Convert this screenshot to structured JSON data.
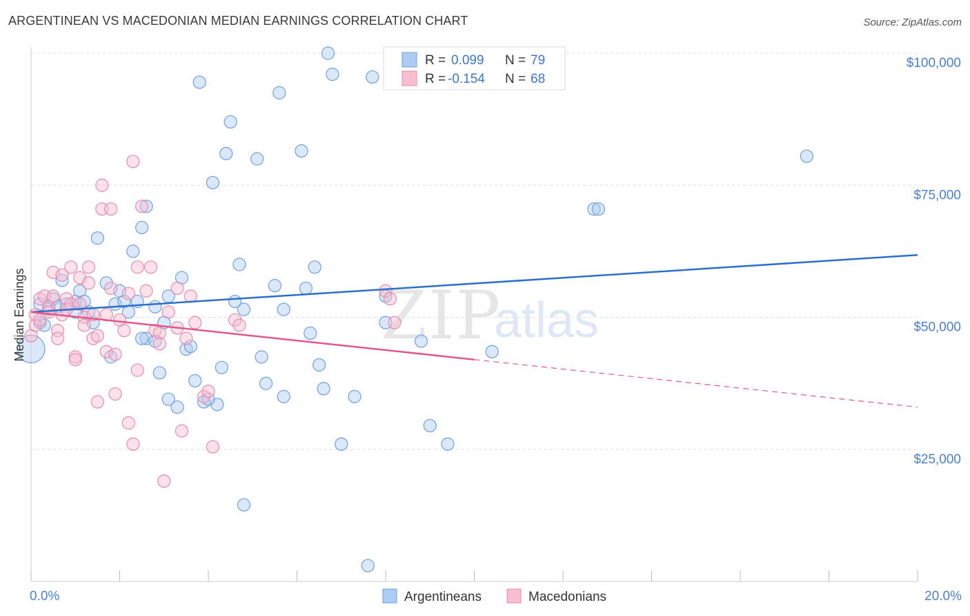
{
  "title": "ARGENTINEAN VS MACEDONIAN MEDIAN EARNINGS CORRELATION CHART",
  "source": "Source: ZipAtlas.com",
  "watermark": {
    "zip": "ZIP",
    "atlas": "atlas"
  },
  "colors": {
    "blue_fill": "#aecbf2",
    "blue_stroke": "#6f9fe0",
    "blue_line": "#2c6fca",
    "pink_fill": "#f7bdd0",
    "pink_stroke": "#e88aab",
    "pink_line": "#e0588a",
    "grid": "#dddddd",
    "tick_text": "#4a7fd4"
  },
  "legend_top": {
    "rows": [
      {
        "r_label": "R =",
        "r_value": "0.099",
        "n_label": "N =",
        "n_value": "79",
        "color": "blue"
      },
      {
        "r_label": "R =",
        "r_value": "-0.154",
        "n_label": "N =",
        "n_value": "68",
        "color": "pink"
      }
    ]
  },
  "legend_bottom": {
    "items": [
      {
        "label": "Argentineans",
        "color": "blue"
      },
      {
        "label": "Macedonians",
        "color": "pink"
      }
    ]
  },
  "chart_data": {
    "type": "scatter",
    "title": "ARGENTINEAN VS MACEDONIAN MEDIAN EARNINGS CORRELATION CHART",
    "xlabel": "",
    "ylabel": "Median Earnings",
    "xlim": [
      0,
      20
    ],
    "ylim": [
      0,
      105000
    ],
    "x_tick_labels": [
      "0.0%",
      "20.0%"
    ],
    "y_ticks": [
      25000,
      50000,
      75000,
      100000
    ],
    "y_tick_labels": [
      "$25,000",
      "$50,000",
      "$75,000",
      "$100,000"
    ],
    "grid": true,
    "legend_position": "top-center",
    "series": [
      {
        "name": "Argentineans",
        "color": "blue",
        "r": 0.099,
        "n": 79,
        "trend": {
          "x0": 0,
          "y0": 51000,
          "x1": 20,
          "y1": 61800,
          "dashed_from": null
        },
        "points": [
          [
            0.0,
            44000
          ],
          [
            0.2,
            49000
          ],
          [
            0.2,
            52500
          ],
          [
            0.4,
            51500
          ],
          [
            0.5,
            53500
          ],
          [
            0.6,
            52000
          ],
          [
            0.7,
            57000
          ],
          [
            1.0,
            51000
          ],
          [
            1.0,
            53000
          ],
          [
            1.1,
            55000
          ],
          [
            1.2,
            53000
          ],
          [
            1.4,
            49000
          ],
          [
            1.5,
            65000
          ],
          [
            1.7,
            56500
          ],
          [
            1.8,
            42500
          ],
          [
            1.9,
            52500
          ],
          [
            2.0,
            55000
          ],
          [
            2.1,
            53000
          ],
          [
            2.2,
            51000
          ],
          [
            2.3,
            62500
          ],
          [
            2.4,
            53000
          ],
          [
            2.5,
            67000
          ],
          [
            2.6,
            46000
          ],
          [
            2.6,
            71000
          ],
          [
            2.8,
            45500
          ],
          [
            2.8,
            52000
          ],
          [
            2.9,
            39500
          ],
          [
            3.0,
            49000
          ],
          [
            3.1,
            54000
          ],
          [
            3.1,
            34500
          ],
          [
            3.3,
            33000
          ],
          [
            3.4,
            57500
          ],
          [
            3.5,
            44000
          ],
          [
            3.6,
            44500
          ],
          [
            3.7,
            38000
          ],
          [
            3.8,
            94500
          ],
          [
            3.9,
            34000
          ],
          [
            4.1,
            75500
          ],
          [
            4.2,
            33500
          ],
          [
            4.3,
            40500
          ],
          [
            4.4,
            81000
          ],
          [
            4.5,
            87000
          ],
          [
            4.6,
            53000
          ],
          [
            4.7,
            60000
          ],
          [
            4.8,
            51500
          ],
          [
            4.8,
            14500
          ],
          [
            5.1,
            80000
          ],
          [
            5.2,
            42500
          ],
          [
            5.3,
            37500
          ],
          [
            5.5,
            56000
          ],
          [
            5.6,
            92500
          ],
          [
            5.7,
            35000
          ],
          [
            5.7,
            51500
          ],
          [
            6.1,
            81500
          ],
          [
            6.2,
            55500
          ],
          [
            6.3,
            47000
          ],
          [
            6.4,
            59500
          ],
          [
            6.5,
            41000
          ],
          [
            6.6,
            36500
          ],
          [
            6.7,
            100000
          ],
          [
            6.8,
            96000
          ],
          [
            7.0,
            26000
          ],
          [
            7.3,
            35000
          ],
          [
            7.6,
            3000
          ],
          [
            7.7,
            95500
          ],
          [
            8.0,
            54000
          ],
          [
            8.0,
            49000
          ],
          [
            8.8,
            45500
          ],
          [
            9.0,
            29500
          ],
          [
            9.4,
            26000
          ],
          [
            10.4,
            43500
          ],
          [
            12.7,
            70500
          ],
          [
            12.8,
            70500
          ],
          [
            17.5,
            80500
          ],
          [
            0.3,
            48500
          ],
          [
            0.8,
            52500
          ],
          [
            1.3,
            51000
          ],
          [
            2.5,
            46000
          ],
          [
            4.0,
            34500
          ]
        ]
      },
      {
        "name": "Macedonians",
        "color": "pink",
        "r": -0.154,
        "n": 68,
        "trend": {
          "x0": 0,
          "y0": 51000,
          "x1": 10,
          "y1": 42000,
          "dashed_to_x": 20,
          "dashed_to_y": 33000
        },
        "points": [
          [
            0.0,
            46500
          ],
          [
            0.1,
            48500
          ],
          [
            0.1,
            50500
          ],
          [
            0.2,
            53500
          ],
          [
            0.2,
            49500
          ],
          [
            0.3,
            54000
          ],
          [
            0.4,
            52000
          ],
          [
            0.5,
            58500
          ],
          [
            0.5,
            54000
          ],
          [
            0.6,
            47500
          ],
          [
            0.6,
            46000
          ],
          [
            0.7,
            50500
          ],
          [
            0.7,
            58000
          ],
          [
            0.8,
            53500
          ],
          [
            0.8,
            51500
          ],
          [
            0.9,
            59500
          ],
          [
            0.9,
            52500
          ],
          [
            1.0,
            42500
          ],
          [
            1.0,
            42000
          ],
          [
            1.1,
            57500
          ],
          [
            1.1,
            52500
          ],
          [
            1.2,
            50000
          ],
          [
            1.2,
            48500
          ],
          [
            1.3,
            59500
          ],
          [
            1.3,
            56500
          ],
          [
            1.4,
            46000
          ],
          [
            1.5,
            46500
          ],
          [
            1.5,
            34000
          ],
          [
            1.6,
            75000
          ],
          [
            1.6,
            70500
          ],
          [
            1.7,
            50500
          ],
          [
            1.7,
            43500
          ],
          [
            1.8,
            70500
          ],
          [
            1.8,
            55500
          ],
          [
            1.9,
            43000
          ],
          [
            1.9,
            35500
          ],
          [
            2.0,
            49500
          ],
          [
            2.1,
            47500
          ],
          [
            2.2,
            54500
          ],
          [
            2.2,
            30000
          ],
          [
            2.3,
            79500
          ],
          [
            2.3,
            26000
          ],
          [
            2.4,
            59500
          ],
          [
            2.4,
            40000
          ],
          [
            2.5,
            71000
          ],
          [
            2.6,
            55000
          ],
          [
            2.7,
            59500
          ],
          [
            2.8,
            47500
          ],
          [
            2.9,
            47000
          ],
          [
            2.9,
            45000
          ],
          [
            3.0,
            19000
          ],
          [
            3.1,
            51000
          ],
          [
            3.3,
            55500
          ],
          [
            3.4,
            28500
          ],
          [
            3.5,
            46000
          ],
          [
            3.6,
            54000
          ],
          [
            3.7,
            49000
          ],
          [
            3.9,
            35000
          ],
          [
            4.0,
            36000
          ],
          [
            4.1,
            25500
          ],
          [
            4.6,
            49500
          ],
          [
            4.7,
            48500
          ],
          [
            8.0,
            55000
          ],
          [
            8.1,
            53500
          ],
          [
            8.2,
            49000
          ],
          [
            0.4,
            51000
          ],
          [
            1.4,
            50500
          ],
          [
            3.3,
            48000
          ]
        ]
      }
    ]
  }
}
